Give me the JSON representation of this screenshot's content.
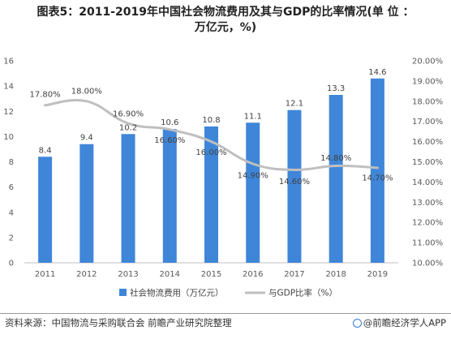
{
  "title_line1": "图表5：2011-2019年中国社会物流费用及其与GDP的比率情况(单 位 ：",
  "title_line2": "万亿元，%)",
  "source": "资料来源：中国物流与采购联合会 前瞻产业研究院整理",
  "brand": "@前瞻经济学人APP",
  "colors": {
    "bar": "#3f86d9",
    "line": "#bfbfbf"
  },
  "chart_data": {
    "type": "bar",
    "categories": [
      "2011",
      "2012",
      "2013",
      "2014",
      "2015",
      "2016",
      "2017",
      "2018",
      "2019"
    ],
    "series": [
      {
        "name": "社会物流费用（万亿元）",
        "kind": "bar",
        "axis": "left",
        "values": [
          8.4,
          9.4,
          10.2,
          10.6,
          10.8,
          11.1,
          12.1,
          13.3,
          14.6
        ],
        "labels": [
          "8.4",
          "9.4",
          "10.2",
          "10.6",
          "10.8",
          "11.1",
          "12.1",
          "13.3",
          "14.6"
        ]
      },
      {
        "name": "与GDP比率（%）",
        "kind": "line",
        "axis": "right",
        "values": [
          17.8,
          18.0,
          16.9,
          16.6,
          16.0,
          14.9,
          14.6,
          14.8,
          14.7
        ],
        "labels": [
          "17.80%",
          "18.00%",
          "16.90%",
          "16.60%",
          "16.00%",
          "14.90%",
          "14.60%",
          "14.80%",
          "14.70%"
        ]
      }
    ],
    "y_left": {
      "min": 0,
      "max": 16,
      "step": 2,
      "ticks": [
        "0",
        "2",
        "4",
        "6",
        "8",
        "10",
        "12",
        "14",
        "16"
      ]
    },
    "y_right": {
      "min": 10,
      "max": 20,
      "step": 1,
      "ticks": [
        "10.00%",
        "11.00%",
        "12.00%",
        "13.00%",
        "14.00%",
        "15.00%",
        "16.00%",
        "17.00%",
        "18.00%",
        "19.00%",
        "20.00%"
      ]
    },
    "grid": false,
    "legend": "bottom"
  }
}
